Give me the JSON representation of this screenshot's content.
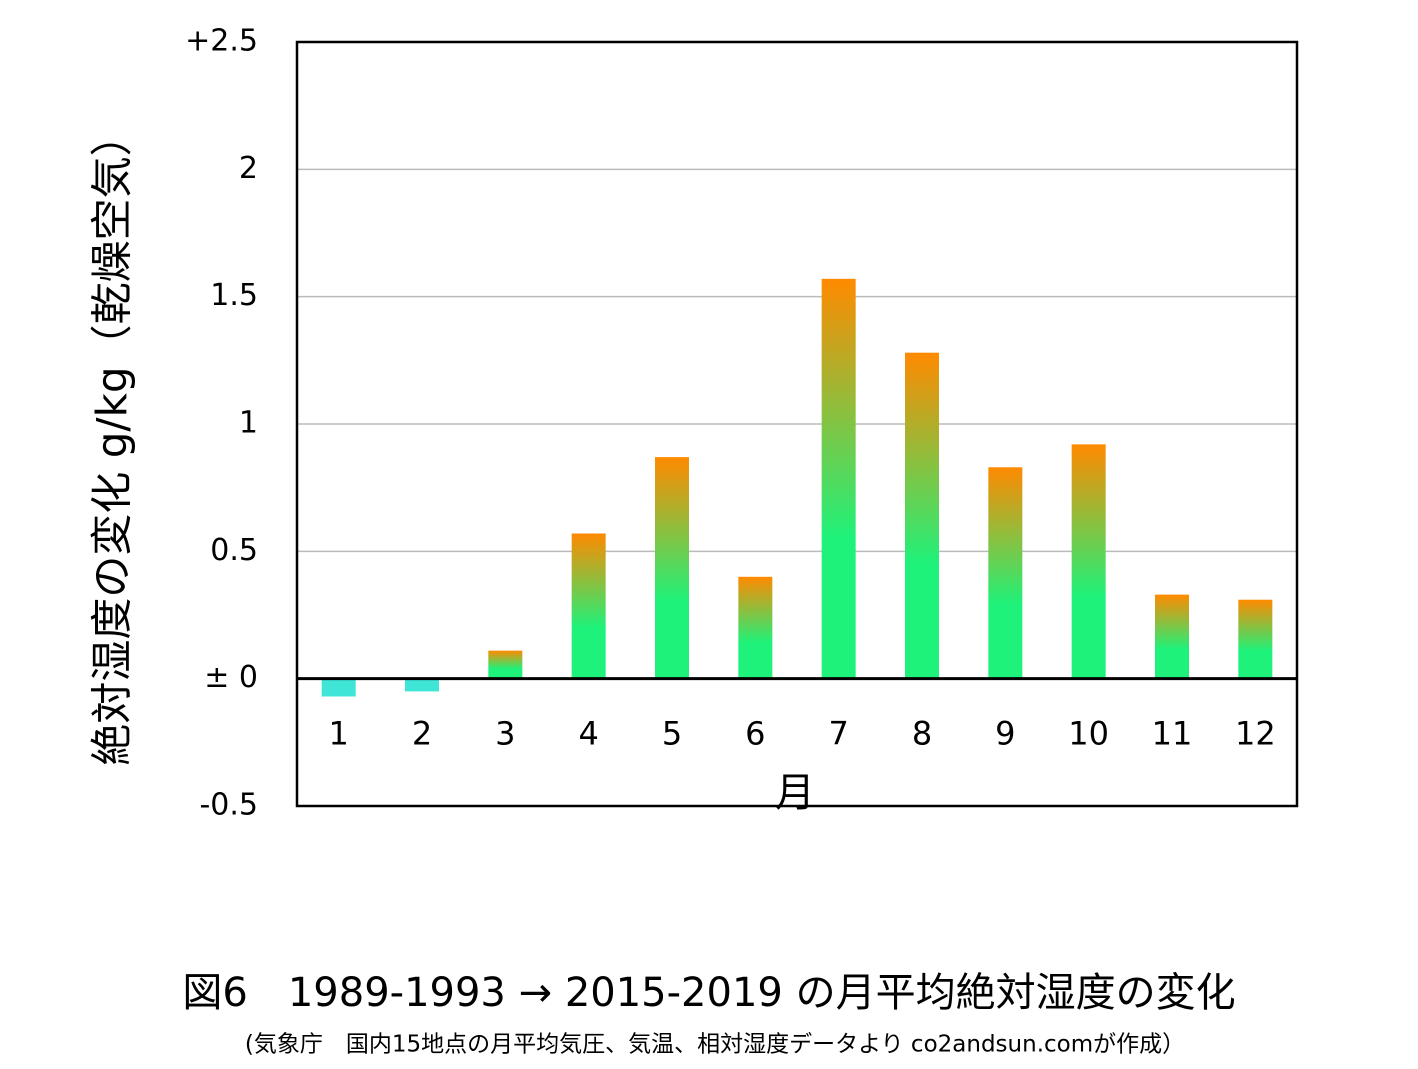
{
  "chart_data": {
    "type": "bar",
    "title": "図6　1989-1993 → 2015-2019 の月平均絶対湿度の変化",
    "subtitle": "(気象庁　国内15地点の月平均気圧、気温、相対湿度データより co2andsun.comが作成）",
    "x_label": "月",
    "y_label": "絶対湿度の変化 g/kg（乾燥空気）",
    "categories": [
      "1",
      "2",
      "3",
      "4",
      "5",
      "6",
      "7",
      "8",
      "9",
      "10",
      "11",
      "12"
    ],
    "values": [
      -0.07,
      -0.05,
      0.11,
      0.57,
      0.87,
      0.4,
      1.57,
      1.28,
      0.83,
      0.92,
      0.33,
      0.31
    ],
    "gradient": [
      "#ff8a00",
      "#1ef27a"
    ],
    "negative_color": "#3fe6d8",
    "ylim": [
      -0.5,
      2.5
    ],
    "yticks": [
      -0.5,
      {
        "value": 0,
        "label": "± 0"
      },
      0.5,
      1,
      1.5,
      2,
      {
        "value": 2.5,
        "label": "+2.5"
      }
    ],
    "grid": true
  }
}
